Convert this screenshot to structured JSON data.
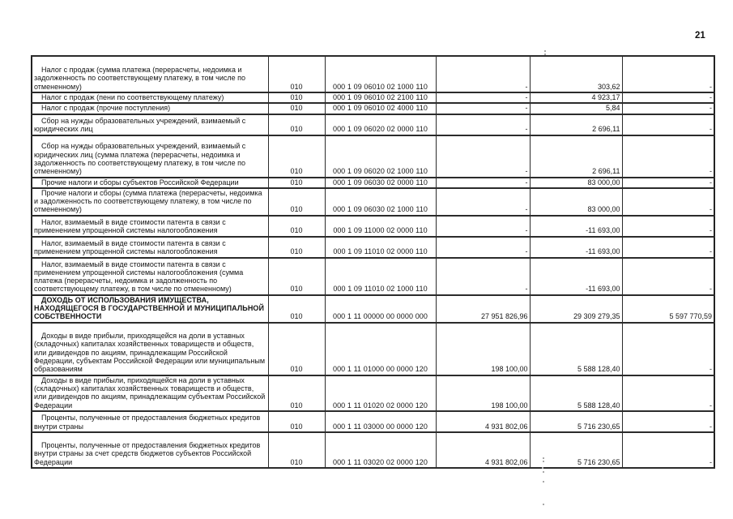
{
  "page": {
    "number": "21"
  },
  "table": {
    "column_names": [
      "description",
      "line_code",
      "budget_classification_code",
      "approved",
      "executed",
      "deviation"
    ],
    "rows": [
      {
        "description": "Налог с продаж (сумма платежа (перерасчеты, недоимка и задолженность по соответствующему платежу, в том числе по отмененному)",
        "line_code": "010",
        "code": "000 1 09 06010 02 1000 110",
        "v1": "-",
        "v2": "303,62",
        "v3": "-",
        "section": false
      },
      {
        "description": "Налог с продаж (пени по соответствующему платежу)",
        "line_code": "010",
        "code": "000 1 09 06010 02 2100 110",
        "v1": "-",
        "v2": "4 923,17",
        "v3": "-",
        "section": false
      },
      {
        "description": "Налог с продаж (прочие поступления)",
        "line_code": "010",
        "code": "000 1 09 06010 02 4000 110",
        "v1": "-",
        "v2": "5,84",
        "v3": "-",
        "section": false
      },
      {
        "description": "Сбор на нужды образовательных учреждений, взимаемый с юридических лиц",
        "line_code": "010",
        "code": "000 1 09 06020 02 0000 110",
        "v1": "-",
        "v2": "2 696,11",
        "v3": "-",
        "section": false
      },
      {
        "description": "Сбор на нужды образовательных учреждений, взимаемый с юридических лиц (сумма платежа (перерасчеты, недоимка и задолженность по соответствующему платежу, в том числе по отмененному)",
        "line_code": "010",
        "code": "000 1 09 06020 02 1000 110",
        "v1": "-",
        "v2": "2 696,11",
        "v3": "-",
        "section": false
      },
      {
        "description": "Прочие налоги и сборы субъектов Российской Федерации",
        "line_code": "010",
        "code": "000 1 09 06030 02 0000 110",
        "v1": "-",
        "v2": "83 000,00",
        "v3": "-",
        "section": false
      },
      {
        "description": "Прочие налоги и сборы (сумма платежа (перерасчеты, недоимка и задолженность по соответствующему платежу, в том числе по отмененному)",
        "line_code": "010",
        "code": "000 1 09 06030 02 1000 110",
        "v1": "-",
        "v2": "83 000,00",
        "v3": "-",
        "section": false
      },
      {
        "description": "Налог, взимаемый в виде стоимости патента в связи с применением упрощенной системы налогообложения",
        "line_code": "010",
        "code": "000 1 09 11000 02 0000 110",
        "v1": "-",
        "v2": "-11 693,00",
        "v3": "-",
        "section": false
      },
      {
        "description": "Налог, взимаемый в виде стоимости патента в связи с применением упрощенной системы налогообложения",
        "line_code": "010",
        "code": "000 1 09 11010 02 0000 110",
        "v1": "-",
        "v2": "-11 693,00",
        "v3": "-",
        "section": false
      },
      {
        "description": "Налог, взимаемый в виде стоимости патента в связи с применением упрощенной системы налогообложения (сумма платежа (перерасчеты, недоимка и задолженность по соответствующему платежу, в том числе по отмененному)",
        "line_code": "010",
        "code": "000 1 09 11010 02 1000 110",
        "v1": "-",
        "v2": "-11 693,00",
        "v3": "-",
        "section": false
      },
      {
        "description": "ДОХОДЬ  ОТ ИСПОЛЬЗОВАНИЯ ИМУЩЕСТВА, НАХОДЯЩЕГОСЯ В ГОСУДАРСТВЕННОЙ И МУНИЦИПАЛЬНОЙ СОБСТВЕННОСТИ",
        "line_code": "010",
        "code": "000 1 11 00000 00 0000 000",
        "v1": "27 951 826,96",
        "v2": "29 309 279,35",
        "v3": "5 597 770,59",
        "section": true
      },
      {
        "description": "Доходы в виде прибыли, приходящейся на доли в уставных (складочных) капиталах хозяйственных товариществ и обществ, или дивидендов по акциям, принадлежащим Российской Федерации, субъектам Российской Федерации или муниципальным образованиям",
        "line_code": "010",
        "code": "000 1 11 01000 00 0000 120",
        "v1": "198 100,00",
        "v2": "5 588 128,40",
        "v3": "-",
        "section": false
      },
      {
        "description": "Доходы в виде прибыли, приходящейся на доли в уставных (складочных) капиталах хозяйственных товариществ и обществ, или дивидендов по акциям, принадлежащим субъектам Российской Федерации",
        "line_code": "010",
        "code": "000 1 11 01020 02 0000 120",
        "v1": "198 100,00",
        "v2": "5 588 128,40",
        "v3": "-",
        "section": false
      },
      {
        "description": "Проценты, полученные от предоставления бюджетных кредитов внутри страны",
        "line_code": "010",
        "code": "000 1 11 03000 00 0000 120",
        "v1": "4 931 802,06",
        "v2": "5 716 230,65",
        "v3": "-",
        "section": false
      },
      {
        "description": "Проценты, полученные от предоставления бюджетных кредитов внутри страны за счет средств бюджетов субъектов Российской Федерации",
        "line_code": "010",
        "code": "000 1 11 03020 02 0000 120",
        "v1": "4 931 802,06",
        "v2": "5 716 230,65",
        "v3": "-",
        "section": false
      }
    ]
  }
}
